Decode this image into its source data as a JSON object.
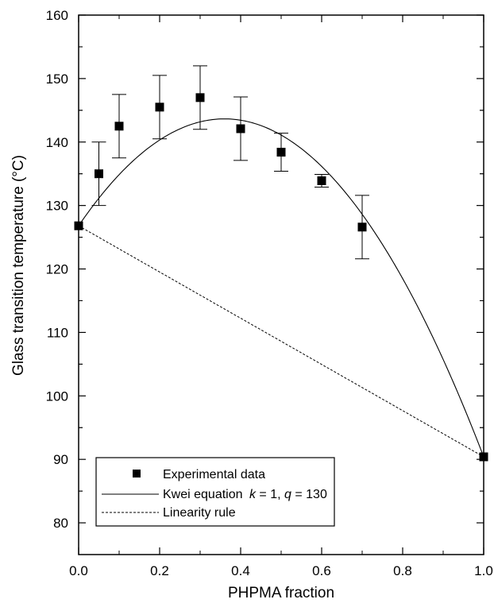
{
  "chart_data": {
    "type": "scatter",
    "xlabel": "PHPMA fraction",
    "ylabel": "Glass transition temperature (°C)",
    "xlim": [
      0,
      1
    ],
    "ylim": [
      75,
      160
    ],
    "x_ticks": [
      "0.0",
      "0.2",
      "0.4",
      "0.6",
      "0.8",
      "1.0"
    ],
    "x_tick_values": [
      0,
      0.2,
      0.4,
      0.6,
      0.8,
      1.0
    ],
    "y_ticks": [
      "80",
      "90",
      "100",
      "110",
      "120",
      "130",
      "140",
      "150",
      "160"
    ],
    "y_tick_values": [
      80,
      90,
      100,
      110,
      120,
      130,
      140,
      150,
      160
    ],
    "grid": false,
    "legend_position": "bottom-left",
    "series": [
      {
        "name": "Experimental data",
        "kind": "scatter",
        "marker": "filled-square",
        "x": [
          0.0,
          0.05,
          0.1,
          0.2,
          0.3,
          0.4,
          0.5,
          0.6,
          0.7,
          1.0
        ],
        "y": [
          126.8,
          135.0,
          142.5,
          145.5,
          147.0,
          142.1,
          138.4,
          133.9,
          126.6,
          90.4
        ],
        "error": [
          0,
          5.0,
          5.0,
          5.0,
          5.0,
          5.0,
          3.0,
          1.0,
          5.0,
          0
        ]
      },
      {
        "name": "Kwei equation",
        "name_k": "k",
        "name_k_value": " = 1, ",
        "name_q": "q",
        "name_q_value": " = 130",
        "kind": "line",
        "style": "solid",
        "equation": {
          "Tg1": 126.8,
          "Tg2": 90.4,
          "k": 1,
          "q": 130
        }
      },
      {
        "name": "Linearity rule",
        "kind": "line",
        "style": "dashed",
        "x": [
          0.0,
          1.0
        ],
        "y": [
          126.8,
          90.4
        ]
      }
    ]
  }
}
